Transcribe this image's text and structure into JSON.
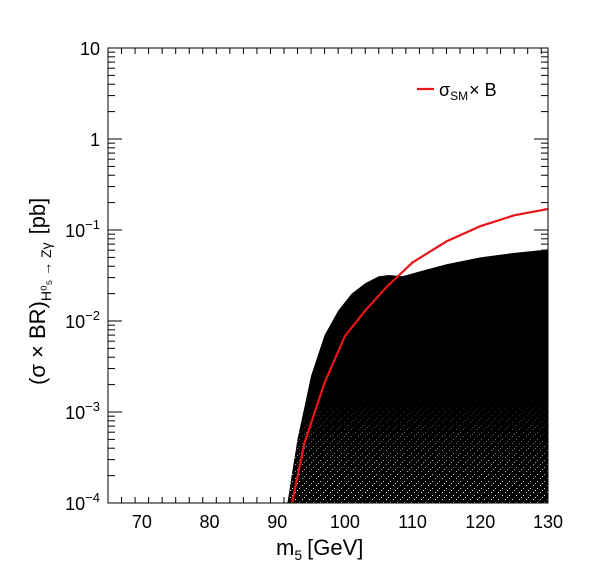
{
  "chart_data": {
    "type": "scatter",
    "xlabel": "m",
    "xlabel_sub": "5",
    "xlabel_unit": "[GeV]",
    "ylabel_main": "(σ × BR)",
    "ylabel_sub": "H⁰₅ → Zγ",
    "ylabel_unit": "[pb]",
    "xlim": [
      65,
      130
    ],
    "ylim": [
      0.0001,
      10
    ],
    "y_scale": "log",
    "x_ticks": [
      70,
      80,
      90,
      100,
      110,
      120,
      130
    ],
    "y_ticks": [
      {
        "value": 0.0001,
        "base": "10",
        "exp": "−4"
      },
      {
        "value": 0.001,
        "base": "10",
        "exp": "−3"
      },
      {
        "value": 0.01,
        "base": "10",
        "exp": "−2"
      },
      {
        "value": 0.1,
        "base": "10",
        "exp": "−1"
      },
      {
        "value": 1,
        "base": "1",
        "exp": ""
      },
      {
        "value": 10,
        "base": "10",
        "exp": ""
      }
    ],
    "legend_position": "top-right",
    "series": [
      {
        "name": "σ_SM × B",
        "legend_main": "σ",
        "legend_sub": "SM",
        "legend_rest": "× B",
        "kind": "line",
        "color": "#e8161b",
        "x": [
          92.2,
          94,
          97,
          100,
          103,
          106,
          110,
          115,
          120,
          125,
          130
        ],
        "y": [
          0.0001,
          0.00045,
          0.0021,
          0.0068,
          0.013,
          0.023,
          0.044,
          0.075,
          0.11,
          0.145,
          0.17
        ]
      },
      {
        "name": "",
        "kind": "scatter-band",
        "color": "#000000",
        "upper_envelope": {
          "x": [
            91.5,
            93,
            95,
            97,
            99,
            101,
            103,
            105,
            106.5,
            108.5,
            111,
            115,
            120,
            125,
            130
          ],
          "y": [
            0.0001,
            0.0005,
            0.0025,
            0.007,
            0.013,
            0.02,
            0.026,
            0.031,
            0.032,
            0.031,
            0.035,
            0.042,
            0.05,
            0.056,
            0.061
          ]
        }
      }
    ]
  }
}
